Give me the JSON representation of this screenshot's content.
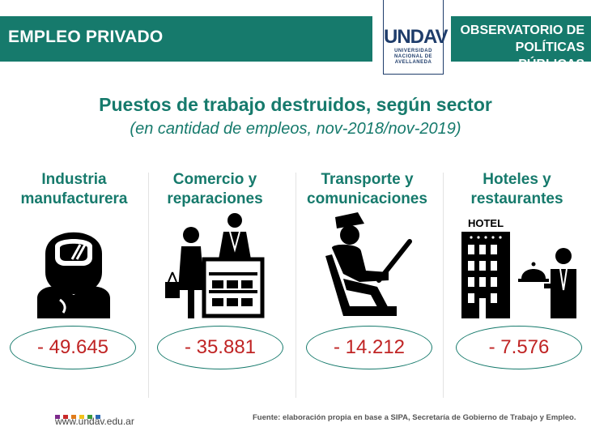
{
  "header": {
    "left_label": "EMPLEO PRIVADO",
    "logo_mark": "UNDAV",
    "logo_lines": [
      "UNIVERSIDAD",
      "NACIONAL DE",
      "AVELLANEDA"
    ],
    "right_label_line1": "OBSERVATORIO DE",
    "right_label_line2": "POLÍTICAS PÚBLICAS",
    "color": "#167a6c"
  },
  "title": "Puestos de trabajo destruidos, según sector",
  "subtitle": "(en cantidad de empleos, nov-2018/nov-2019)",
  "sectors": [
    {
      "line1": "Industria",
      "line2": "manufacturera",
      "value": "- 49.645",
      "icon": "worker-helmet-icon"
    },
    {
      "line1": "Comercio y",
      "line2": "reparaciones",
      "value": "- 35.881",
      "icon": "shop-counter-icon"
    },
    {
      "line1": "Transporte y",
      "line2": "comunicaciones",
      "value": "- 14.212",
      "icon": "driver-icon"
    },
    {
      "line1": "Hoteles y",
      "line2": "restaurantes",
      "value": "- 7.576",
      "icon": "hotel-waiter-icon",
      "hotel_sign": "HOTEL"
    }
  ],
  "footer": {
    "url": "www.undav.edu.ar",
    "source": "Fuente: elaboración propia en base a SIPA, Secretaría de Gobierno de Trabajo y Empleo.",
    "dot_colors": [
      "#7d2a8c",
      "#c92a2a",
      "#e07b1b",
      "#f2c21b",
      "#3a9a3a",
      "#2a68b5"
    ]
  },
  "colors": {
    "value_text": "#c02424",
    "icon": "#000000"
  }
}
